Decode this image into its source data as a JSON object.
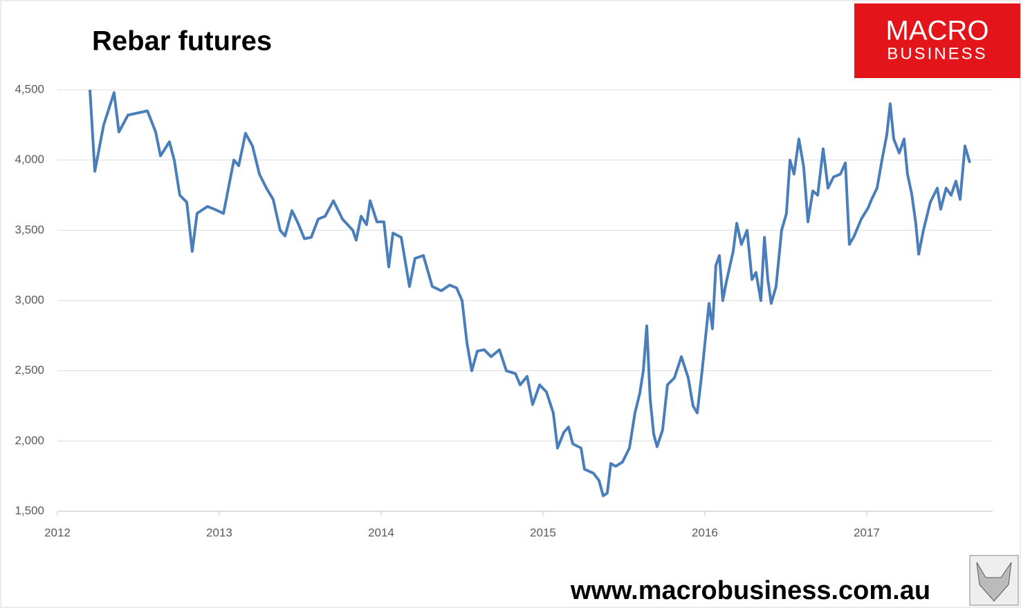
{
  "chart_data": {
    "type": "line",
    "title": "Rebar futures",
    "logo": [
      "MACRO",
      "BUSINESS"
    ],
    "source": "www.macrobusiness.com.au",
    "xlim": [
      2012,
      2017.778
    ],
    "xticks": [
      2012,
      2013,
      2014,
      2015,
      2016,
      2017
    ],
    "ylim": [
      1500,
      4500
    ],
    "yticks": [
      {
        "value": 1500,
        "label": "1,500"
      },
      {
        "value": 2000,
        "label": "2,000"
      },
      {
        "value": 2500,
        "label": "2,500"
      },
      {
        "value": 3000,
        "label": "3,000"
      },
      {
        "value": 3500,
        "label": "3,500"
      },
      {
        "value": 4000,
        "label": "4,000"
      },
      {
        "value": 4500,
        "label": "4,500"
      }
    ],
    "grid": true,
    "color": "#4a7ebb",
    "x": [
      2012.201,
      2012.231,
      2012.286,
      2012.35,
      2012.38,
      2012.436,
      2012.556,
      2012.607,
      2012.637,
      2012.692,
      2012.722,
      2012.756,
      2012.799,
      2012.833,
      2012.863,
      2012.927,
      2012.97,
      2013.026,
      2013.09,
      2013.12,
      2013.162,
      2013.205,
      2013.248,
      2013.291,
      2013.333,
      2013.376,
      2013.406,
      2013.449,
      2013.483,
      2013.526,
      2013.568,
      2013.611,
      2013.654,
      2013.705,
      2013.761,
      2013.825,
      2013.846,
      2013.876,
      2013.91,
      2013.932,
      2013.974,
      2014.017,
      2014.047,
      2014.073,
      2014.124,
      2014.175,
      2014.209,
      2014.261,
      2014.316,
      2014.372,
      2014.423,
      2014.466,
      2014.5,
      2014.53,
      2014.56,
      2014.594,
      2014.637,
      2014.679,
      2014.731,
      2014.774,
      2014.829,
      2014.859,
      2014.902,
      2014.936,
      2014.979,
      2015.021,
      2015.064,
      2015.09,
      2015.128,
      2015.158,
      2015.184,
      2015.235,
      2015.256,
      2015.312,
      2015.346,
      2015.372,
      2015.397,
      2015.419,
      2015.449,
      2015.491,
      2015.534,
      2015.568,
      2015.598,
      2015.62,
      2015.641,
      2015.662,
      2015.684,
      2015.705,
      2015.739,
      2015.769,
      2015.812,
      2015.855,
      2015.897,
      2015.927,
      2015.953,
      2015.983,
      2016.026,
      2016.047,
      2016.068,
      2016.09,
      2016.111,
      2016.132,
      2016.175,
      2016.197,
      2016.226,
      2016.261,
      2016.291,
      2016.316,
      2016.346,
      2016.368,
      2016.389,
      2016.41,
      2016.44,
      2016.474,
      2016.504,
      2016.526,
      2016.551,
      2016.581,
      2016.611,
      2016.637,
      2016.667,
      2016.697,
      2016.731,
      2016.761,
      2016.795,
      2016.838,
      2016.868,
      2016.893,
      2016.923,
      2016.966,
      2017.009,
      2017.03,
      2017.064,
      2017.094,
      2017.124,
      2017.145,
      2017.167,
      2017.201,
      2017.231,
      2017.252,
      2017.278,
      2017.303,
      2017.321,
      2017.35,
      2017.393,
      2017.436,
      2017.457,
      2017.491,
      2017.521,
      2017.551,
      2017.577,
      2017.607,
      2017.637
    ],
    "values": [
      4500,
      3920,
      4250,
      4480,
      4200,
      4320,
      4350,
      4200,
      4030,
      4130,
      4000,
      3750,
      3700,
      3350,
      3620,
      3670,
      3650,
      3620,
      4000,
      3960,
      4190,
      4100,
      3900,
      3800,
      3720,
      3500,
      3460,
      3640,
      3560,
      3440,
      3450,
      3580,
      3600,
      3710,
      3580,
      3500,
      3430,
      3600,
      3540,
      3710,
      3560,
      3560,
      3240,
      3480,
      3450,
      3100,
      3300,
      3320,
      3100,
      3070,
      3110,
      3090,
      3000,
      2700,
      2500,
      2640,
      2650,
      2600,
      2650,
      2500,
      2480,
      2400,
      2460,
      2260,
      2400,
      2350,
      2200,
      1950,
      2060,
      2100,
      1980,
      1950,
      1800,
      1770,
      1720,
      1610,
      1630,
      1840,
      1820,
      1850,
      1950,
      2200,
      2340,
      2500,
      2820,
      2300,
      2050,
      1960,
      2080,
      2400,
      2450,
      2600,
      2450,
      2250,
      2200,
      2500,
      2980,
      2800,
      3250,
      3320,
      3000,
      3130,
      3350,
      3550,
      3400,
      3500,
      3150,
      3200,
      3000,
      3450,
      3150,
      2980,
      3100,
      3500,
      3620,
      4000,
      3900,
      4150,
      3950,
      3560,
      3780,
      3750,
      4080,
      3800,
      3880,
      3900,
      3980,
      3400,
      3460,
      3580,
      3660,
      3720,
      3800,
      4000,
      4180,
      4400,
      4150,
      4050,
      4150,
      3900,
      3760,
      3550,
      3330,
      3500,
      3700,
      3800,
      3650,
      3800,
      3750,
      3850,
      3720,
      4100,
      3980
    ]
  }
}
